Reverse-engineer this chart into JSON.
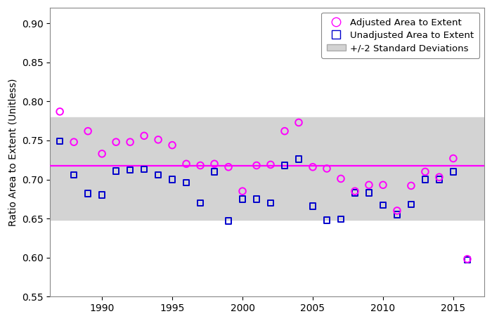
{
  "years": [
    1987,
    1988,
    1989,
    1990,
    1991,
    1992,
    1993,
    1994,
    1995,
    1996,
    1997,
    1998,
    1999,
    2000,
    2001,
    2002,
    2003,
    2004,
    2005,
    2006,
    2007,
    2008,
    2009,
    2010,
    2011,
    2012,
    2013,
    2014,
    2015,
    2016
  ],
  "adjusted": [
    0.787,
    0.748,
    0.762,
    0.733,
    0.748,
    0.748,
    0.756,
    0.751,
    0.744,
    0.72,
    0.718,
    0.72,
    0.716,
    0.685,
    0.718,
    0.719,
    0.762,
    0.773,
    0.716,
    0.714,
    0.701,
    0.685,
    0.693,
    0.693,
    0.66,
    0.692,
    0.71,
    0.703,
    0.727,
    0.598
  ],
  "unadjusted": [
    0.749,
    0.706,
    0.682,
    0.68,
    0.711,
    0.712,
    0.713,
    0.706,
    0.7,
    0.696,
    0.67,
    0.71,
    0.647,
    0.675,
    0.675,
    0.67,
    0.718,
    0.726,
    0.666,
    0.648,
    0.649,
    0.683,
    0.683,
    0.667,
    0.655,
    0.668,
    0.7,
    0.7,
    0.71,
    0.597
  ],
  "mean_line": 0.718,
  "band_upper": 0.78,
  "band_lower": 0.648,
  "ylabel": "Ratio Area to Extent (Unitless)",
  "xlim": [
    1986.3,
    2017.2
  ],
  "ylim": [
    0.55,
    0.92
  ],
  "yticks": [
    0.55,
    0.6,
    0.65,
    0.7,
    0.75,
    0.8,
    0.85,
    0.9
  ],
  "xticks": [
    1990,
    1995,
    2000,
    2005,
    2010,
    2015
  ],
  "adjusted_color": "#ff00ff",
  "unadjusted_color": "#0000cc",
  "mean_color": "#ff00ff",
  "band_color": "#d3d3d3",
  "bg_color": "#ffffff",
  "legend_labels": [
    "Adjusted Area to Extent",
    "Unadjusted Area to Extent",
    "+/-2 Standard Deviations"
  ]
}
